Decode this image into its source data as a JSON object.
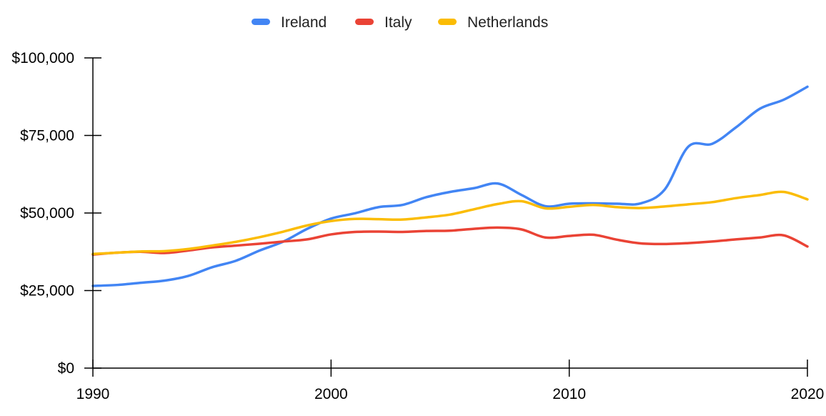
{
  "chart_data": {
    "type": "line",
    "title": "",
    "xlabel": "",
    "ylabel": "",
    "xlim": [
      1990,
      2020
    ],
    "ylim": [
      0,
      100000
    ],
    "x_ticks": [
      1990,
      2000,
      2010,
      2020
    ],
    "x_tick_labels": [
      "1990",
      "2000",
      "2010",
      "2020"
    ],
    "y_ticks": [
      0,
      25000,
      50000,
      75000,
      100000
    ],
    "y_tick_labels": [
      "$0",
      "$25,000",
      "$50,000",
      "$75,000",
      "$100,000"
    ],
    "legend_position": "top",
    "grid": false,
    "x": [
      1990,
      1991,
      1992,
      1993,
      1994,
      1995,
      1996,
      1997,
      1998,
      1999,
      2000,
      2001,
      2002,
      2003,
      2004,
      2005,
      2006,
      2007,
      2008,
      2009,
      2010,
      2011,
      2012,
      2013,
      2014,
      2015,
      2016,
      2017,
      2018,
      2019,
      2020
    ],
    "series": [
      {
        "name": "Ireland",
        "color": "#4285f4",
        "values": [
          26500,
          26800,
          27500,
          28200,
          29700,
          32500,
          34600,
          37900,
          40800,
          44900,
          48200,
          49900,
          51900,
          52600,
          55100,
          56800,
          58000,
          59500,
          55800,
          52200,
          53000,
          53100,
          53000,
          53100,
          57500,
          71400,
          72300,
          77600,
          83600,
          86500,
          90700
        ]
      },
      {
        "name": "Italy",
        "color": "#ea4335",
        "values": [
          36600,
          37200,
          37500,
          37100,
          37900,
          38900,
          39500,
          40100,
          40800,
          41500,
          43100,
          43900,
          44000,
          43900,
          44200,
          44300,
          44900,
          45300,
          44700,
          42100,
          42600,
          43000,
          41400,
          40200,
          40000,
          40300,
          40800,
          41500,
          42100,
          42800,
          39200
        ]
      },
      {
        "name": "Netherlands",
        "color": "#fbbc04",
        "values": [
          36800,
          37200,
          37600,
          37700,
          38400,
          39500,
          40700,
          42200,
          44000,
          46000,
          47400,
          48100,
          48000,
          47900,
          48600,
          49500,
          51200,
          52900,
          53800,
          51500,
          52000,
          52600,
          51900,
          51600,
          52100,
          52800,
          53500,
          54800,
          55800,
          56800,
          54400
        ]
      }
    ]
  }
}
